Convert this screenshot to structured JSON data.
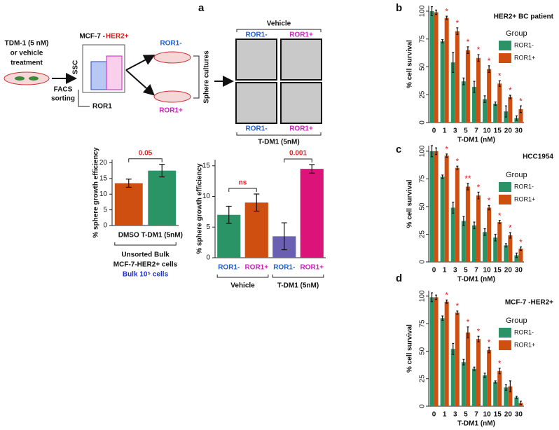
{
  "schematic": {
    "panel": "a",
    "treatment": [
      "TDM-1 (5 nM)",
      "or vehicle",
      "treatment"
    ],
    "sorting": [
      "FACS",
      "sorting"
    ],
    "cell_line": "MCF-7 -",
    "cell_line_marker": "HER2+",
    "flow_y": "SSC",
    "flow_x": "ROR1",
    "neg": "ROR1-",
    "pos": "ROR1+",
    "culture": "Sphere cultures",
    "top_group": "Vehicle",
    "top_labels": [
      "ROR1-",
      "ROR1+"
    ],
    "bottom_labels": [
      "ROR1-",
      "ROR1+"
    ],
    "bottom_group": "T-DM1 (5nM)"
  },
  "chart_data": [
    {
      "type": "bar",
      "ylabel": "% sphere growth efficiency",
      "categories": [
        "DMSO",
        "T-DM1 (5nM)"
      ],
      "values": [
        13.5,
        17.5
      ],
      "errors": [
        1.3,
        2
      ],
      "colors": [
        "#cf4f10",
        "#2a9466"
      ],
      "ylim": [
        0,
        21
      ],
      "yticks": [
        0,
        5,
        10,
        15,
        20
      ],
      "comparison": "0.05",
      "group_label": [
        "Unsorted Bulk",
        "MCF-7-HER2+ cells"
      ],
      "note": "Bulk 10⁵ cells"
    },
    {
      "type": "bar",
      "ylabel": "% sphere growth efficiency",
      "categories": [
        "ROR1-",
        "ROR1+",
        "ROR1-",
        "ROR1+"
      ],
      "category_colors": [
        "#1f5fd6",
        "#d61cc4",
        "#1f5fd6",
        "#d61cc4"
      ],
      "values": [
        7,
        9,
        3.5,
        14.5
      ],
      "errors": [
        1.4,
        1.4,
        2.2,
        0.7
      ],
      "colors": [
        "#2a9466",
        "#cf4f10",
        "#6a5fb0",
        "#dc147a"
      ],
      "ylim": [
        0,
        16
      ],
      "yticks": [
        0,
        5,
        10,
        15
      ],
      "groups": [
        {
          "name": "Vehicle",
          "comparison": "ns"
        },
        {
          "name": "T-DM1 (5nM)",
          "comparison": "0.001"
        }
      ]
    },
    {
      "type": "bar",
      "panel": "b",
      "title": "HER2+ BC patient",
      "xlabel": "T-DM1 (nM)",
      "ylabel": "% cell survival",
      "legend_title": "Group",
      "categories": [
        "0",
        "1",
        "3",
        "5",
        "7",
        "10",
        "15",
        "20",
        "30"
      ],
      "ylim": [
        0,
        105
      ],
      "yticks": [
        0,
        25,
        50,
        75,
        100
      ],
      "series": [
        {
          "name": "ROR1-",
          "color": "#2a9466",
          "values": [
            100,
            73,
            54,
            37,
            32,
            21,
            17,
            10,
            4
          ],
          "errors": [
            4,
            1.5,
            9,
            3,
            5,
            3,
            1.5,
            5,
            2
          ]
        },
        {
          "name": "ROR1+",
          "color": "#cf4f10",
          "values": [
            99,
            94,
            82,
            65,
            58,
            48,
            35,
            23,
            12
          ],
          "errors": [
            2,
            1.5,
            3,
            3,
            3,
            3,
            2.5,
            1.5,
            3
          ],
          "significance": [
            null,
            "*",
            "*",
            "*",
            "*",
            "*",
            "*",
            "*",
            "*"
          ]
        }
      ]
    },
    {
      "type": "bar",
      "panel": "c",
      "title": "HCC1954",
      "xlabel": "T-DM1 (nM)",
      "ylabel": "% cell survival",
      "legend_title": "Group",
      "categories": [
        "0",
        "1",
        "3",
        "5",
        "7",
        "10",
        "15",
        "20",
        "30"
      ],
      "ylim": [
        0,
        105
      ],
      "yticks": [
        0,
        25,
        50,
        75,
        100
      ],
      "series": [
        {
          "name": "ROR1-",
          "color": "#2a9466",
          "values": [
            100,
            77,
            49,
            37,
            33,
            27,
            22,
            15,
            6
          ],
          "errors": [
            5,
            1.5,
            5,
            4,
            3,
            3,
            3,
            1.5,
            2
          ]
        },
        {
          "name": "ROR1+",
          "color": "#cf4f10",
          "values": [
            100,
            96,
            85,
            68,
            60,
            49,
            36,
            24,
            12
          ],
          "errors": [
            3,
            1.5,
            1.5,
            3,
            3,
            2,
            1.5,
            2.5,
            1.5
          ],
          "significance": [
            null,
            "*",
            "*",
            "**",
            "*",
            "*",
            "*",
            "*",
            "*"
          ]
        }
      ]
    },
    {
      "type": "bar",
      "panel": "d",
      "title": "MCF-7 -HER2+",
      "xlabel": "T-DM1 (nM)",
      "ylabel": "% cell survival",
      "legend_title": "Group",
      "categories": [
        "0",
        "1",
        "3",
        "5",
        "7",
        "10",
        "15",
        "20",
        "30"
      ],
      "ylim": [
        0,
        105
      ],
      "yticks": [
        0,
        25,
        50,
        75,
        100
      ],
      "series": [
        {
          "name": "ROR1-",
          "color": "#2a9466",
          "values": [
            99,
            80,
            52,
            40,
            34,
            28,
            22,
            17,
            8
          ],
          "errors": [
            4,
            2,
            5,
            2.5,
            1.5,
            2,
            1,
            2.5,
            1
          ]
        },
        {
          "name": "ROR1+",
          "color": "#cf4f10",
          "values": [
            99,
            95,
            85,
            67,
            61,
            51,
            32,
            18,
            3
          ],
          "errors": [
            2,
            1.5,
            1.5,
            5,
            2.5,
            2.5,
            2.5,
            5,
            1.5
          ],
          "significance": [
            null,
            "*",
            "*",
            "*",
            "*",
            "*",
            "*",
            null,
            null
          ]
        }
      ]
    }
  ]
}
